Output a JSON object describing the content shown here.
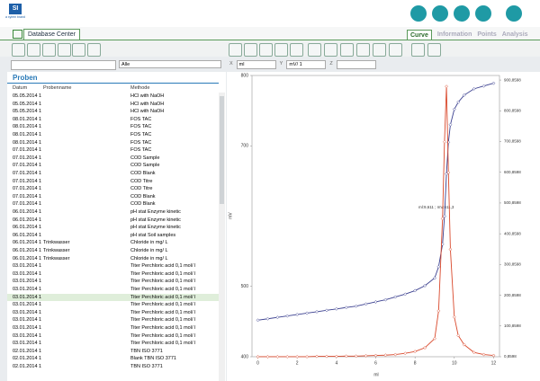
{
  "header": {
    "logo": "SI",
    "tagline": "a xylem brand"
  },
  "tabs": {
    "left": "Database Center",
    "right": [
      "Curve",
      "Information",
      "Points",
      "Analysis"
    ]
  },
  "filter": {
    "select": "Alle"
  },
  "axis_select": [
    {
      "label": "X",
      "value": "ml"
    },
    {
      "label": "Y",
      "value": "mV/ 1"
    },
    {
      "label": "Z"
    }
  ],
  "samples": {
    "title": "Proben",
    "columns": [
      "Datum",
      "Probenname",
      "Methode"
    ],
    "selected_row": 26,
    "rows": [
      [
        "05.05.2014 1",
        null,
        "HCl with NaOH"
      ],
      [
        "05.05.2014 1",
        null,
        "HCl with NaOH"
      ],
      [
        "05.05.2014 1",
        null,
        "HCl with NaOH"
      ],
      [
        "08.01.2014 1",
        null,
        "FOS TAC"
      ],
      [
        "08.01.2014 1",
        null,
        "FOS TAC"
      ],
      [
        "08.01.2014 1",
        null,
        "FOS TAC"
      ],
      [
        "08.01.2014 1",
        null,
        "FOS TAC"
      ],
      [
        "07.01.2014 1",
        null,
        "FOS TAC"
      ],
      [
        "07.01.2014 1",
        null,
        "COD Sample"
      ],
      [
        "07.01.2014 1",
        null,
        "COD Sample"
      ],
      [
        "07.01.2014 1",
        null,
        "COD Blank"
      ],
      [
        "07.01.2014 1",
        null,
        "COD Titre"
      ],
      [
        "07.01.2014 1",
        null,
        "COD Titre"
      ],
      [
        "07.01.2014 1",
        null,
        "COD Blank"
      ],
      [
        "07.01.2014 1",
        null,
        "COD Blank"
      ],
      [
        "06.01.2014 1",
        null,
        "pH stat Enzyme kinetic"
      ],
      [
        "06.01.2014 1",
        null,
        "pH stat Enzyme kinetic"
      ],
      [
        "06.01.2014 1",
        null,
        "pH stat Enzyme kinetic"
      ],
      [
        "06.01.2014 1",
        null,
        "pH stat Soil samples"
      ],
      [
        "06.01.2014 1",
        "Trinkwasser",
        "Chloride in mg/ L"
      ],
      [
        "06.01.2014 1",
        "Trinkwasser",
        "Chloride in mg/ L"
      ],
      [
        "06.01.2014 1",
        "Trinkwasser",
        "Chloride in mg/ L"
      ],
      [
        "03.01.2014 1",
        null,
        "Titer Perchloric acid 0,1 mol/ l"
      ],
      [
        "03.01.2014 1",
        null,
        "Titer Perchloric acid 0,1 mol/ l"
      ],
      [
        "03.01.2014 1",
        null,
        "Titer Perchloric acid 0,1 mol/ l"
      ],
      [
        "03.01.2014 1",
        null,
        "Titer Perchloric acid 0,1 mol/ l"
      ],
      [
        "03.01.2014 1",
        null,
        "Titer Perchloric acid 0,1 mol/ l"
      ],
      [
        "03.01.2014 1",
        null,
        "Titer Perchloric acid 0,1 mol/ l"
      ],
      [
        "03.01.2014 1",
        null,
        "Titer Perchloric acid 0,1 mol/ l"
      ],
      [
        "03.01.2014 1",
        null,
        "Titer Perchloric acid 0,1 mol/ l"
      ],
      [
        "03.01.2014 1",
        null,
        "Titer Perchloric acid 0,1 mol/ l"
      ],
      [
        "03.01.2014 1",
        null,
        "Titer Perchloric acid 0,1 mol/ l"
      ],
      [
        "03.01.2014 1",
        null,
        "Titer Perchloric acid 0,1 mol/ l"
      ],
      [
        "02.01.2014 1",
        null,
        "TBN ISO 3771"
      ],
      [
        "02.01.2014 1",
        null,
        "Blank TBN ISO 3771"
      ],
      [
        "02.01.2014 1",
        null,
        "TBN ISO 3771"
      ]
    ]
  },
  "chart_data": {
    "type": "line",
    "x_label": "ml",
    "y_label": "mV",
    "annotation": "ml:9,611 ; mV:611,3",
    "x": [
      0,
      0.5,
      1,
      1.5,
      2,
      2.5,
      3,
      3.5,
      4,
      4.5,
      5,
      5.5,
      6,
      6.5,
      7,
      7.5,
      8,
      8.5,
      9,
      9.2,
      9.4,
      9.5,
      9.6,
      9.7,
      9.8,
      10,
      10.2,
      10.5,
      11,
      11.5,
      12
    ],
    "series": [
      {
        "color": "#3a3f8f",
        "values": [
          452,
          454,
          456,
          458,
          460,
          462,
          464,
          466,
          468,
          470,
          472,
          475,
          478,
          481,
          485,
          489,
          494,
          501,
          512,
          528,
          560,
          600,
          660,
          705,
          730,
          752,
          762,
          772,
          781,
          785,
          789
        ]
      },
      {
        "color": "#d9482b",
        "axis": "y2",
        "values": [
          1,
          1,
          1,
          1,
          1,
          1,
          2,
          2,
          2,
          3,
          3,
          4,
          5,
          6,
          8,
          12,
          18,
          30,
          60,
          150,
          450,
          700,
          880,
          600,
          350,
          130,
          70,
          40,
          15,
          8,
          5
        ]
      }
    ],
    "xlim": [
      -0.3,
      12.3
    ],
    "xticks": [
      0,
      2,
      4,
      6,
      8,
      10,
      12
    ],
    "ylim": [
      400,
      800
    ],
    "yticks": [
      400,
      500,
      700,
      800
    ],
    "y2lim": [
      0.8598,
      915.7
    ],
    "y2ticks": [
      {
        "value": 0.8598,
        "label": "0,8598"
      },
      {
        "value": 100.8598,
        "label": "100,8598"
      },
      {
        "value": 200.8598,
        "label": "200,8598"
      },
      {
        "value": 300.8598,
        "label": "300,8598"
      },
      {
        "value": 400.8598,
        "label": "400,8598"
      },
      {
        "value": 500.8598,
        "label": "500,8598"
      },
      {
        "value": 600.8598,
        "label": "600,8598"
      },
      {
        "value": 700.8598,
        "label": "700,8598"
      },
      {
        "value": 800.8598,
        "label": "800,8598"
      },
      {
        "value": 900.8598,
        "label": "900,8598"
      }
    ]
  }
}
